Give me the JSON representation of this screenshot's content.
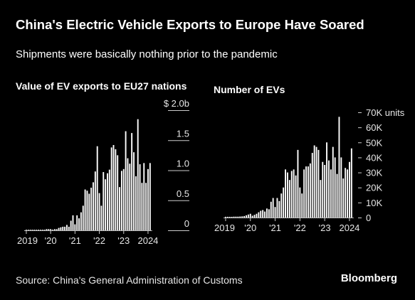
{
  "header": {
    "title": "China's Electric Vehicle Exports to Europe Have Soared",
    "subtitle": "Shipments were basically nothing prior to the pandemic"
  },
  "footer": {
    "source": "Source: China's General Administration of Customs",
    "brand": "Bloomberg"
  },
  "colors": {
    "background": "#000000",
    "bar": "#ffffff",
    "text": "#e6e6e6"
  },
  "chart_data": [
    {
      "type": "bar",
      "title": "Value of EV exports to EU27 nations",
      "xlabel": "",
      "ylabel": "",
      "y_unit": "billion USD",
      "ylim": [
        0,
        2.0
      ],
      "yticks": [
        0,
        0.5,
        1.0,
        1.5,
        2.0
      ],
      "ytick_labels": [
        "0",
        "0.5",
        "1.0",
        "1.5",
        "$ 2.0b"
      ],
      "xtick_labels": [
        "2019",
        "'20",
        "'21",
        "'22",
        "'23",
        "2024"
      ],
      "x_start": "2019-01",
      "frequency": "monthly",
      "grid": false,
      "values": [
        0.01,
        0.01,
        0.01,
        0.01,
        0.01,
        0.01,
        0.01,
        0.01,
        0.01,
        0.01,
        0.02,
        0.02,
        0.02,
        0.01,
        0.02,
        0.02,
        0.04,
        0.05,
        0.06,
        0.06,
        0.09,
        0.06,
        0.16,
        0.25,
        0.1,
        0.25,
        0.2,
        0.3,
        0.41,
        0.68,
        0.66,
        0.61,
        0.71,
        0.8,
        0.98,
        1.4,
        0.62,
        0.41,
        0.97,
        0.85,
        0.95,
        1.01,
        1.38,
        1.42,
        1.35,
        1.25,
        0.72,
        0.99,
        1.02,
        1.65,
        1.2,
        1.11,
        1.62,
        1.3,
        0.9,
        1.85,
        1.1,
        0.79,
        1.12,
        0.79,
        1.02,
        1.12
      ]
    },
    {
      "type": "bar",
      "title": "Number of EVs",
      "xlabel": "",
      "ylabel": "",
      "y_unit": "units",
      "ylim": [
        0,
        70000
      ],
      "yticks": [
        0,
        10000,
        20000,
        30000,
        40000,
        50000,
        60000,
        70000
      ],
      "ytick_labels": [
        "0",
        "10K",
        "20K",
        "30K",
        "40K",
        "50K",
        "60K",
        "70K units"
      ],
      "xtick_labels": [
        "2019",
        "'20",
        "'21",
        "'22",
        "'23",
        "2024"
      ],
      "x_start": "2019-01",
      "frequency": "monthly",
      "grid": false,
      "values": [
        500,
        500,
        500,
        500,
        600,
        600,
        600,
        700,
        800,
        1000,
        1500,
        2000,
        2500,
        1200,
        1800,
        2500,
        3500,
        4500,
        5000,
        4000,
        6000,
        5500,
        10500,
        13000,
        7000,
        13000,
        11000,
        16000,
        20000,
        32000,
        30000,
        25000,
        31000,
        32000,
        28000,
        45000,
        20000,
        16000,
        32000,
        34000,
        34000,
        36000,
        43000,
        48000,
        47000,
        45000,
        25000,
        37000,
        35000,
        50000,
        38000,
        32000,
        47000,
        40000,
        29000,
        67000,
        40000,
        26000,
        33000,
        32000,
        37000,
        46000
      ]
    }
  ]
}
